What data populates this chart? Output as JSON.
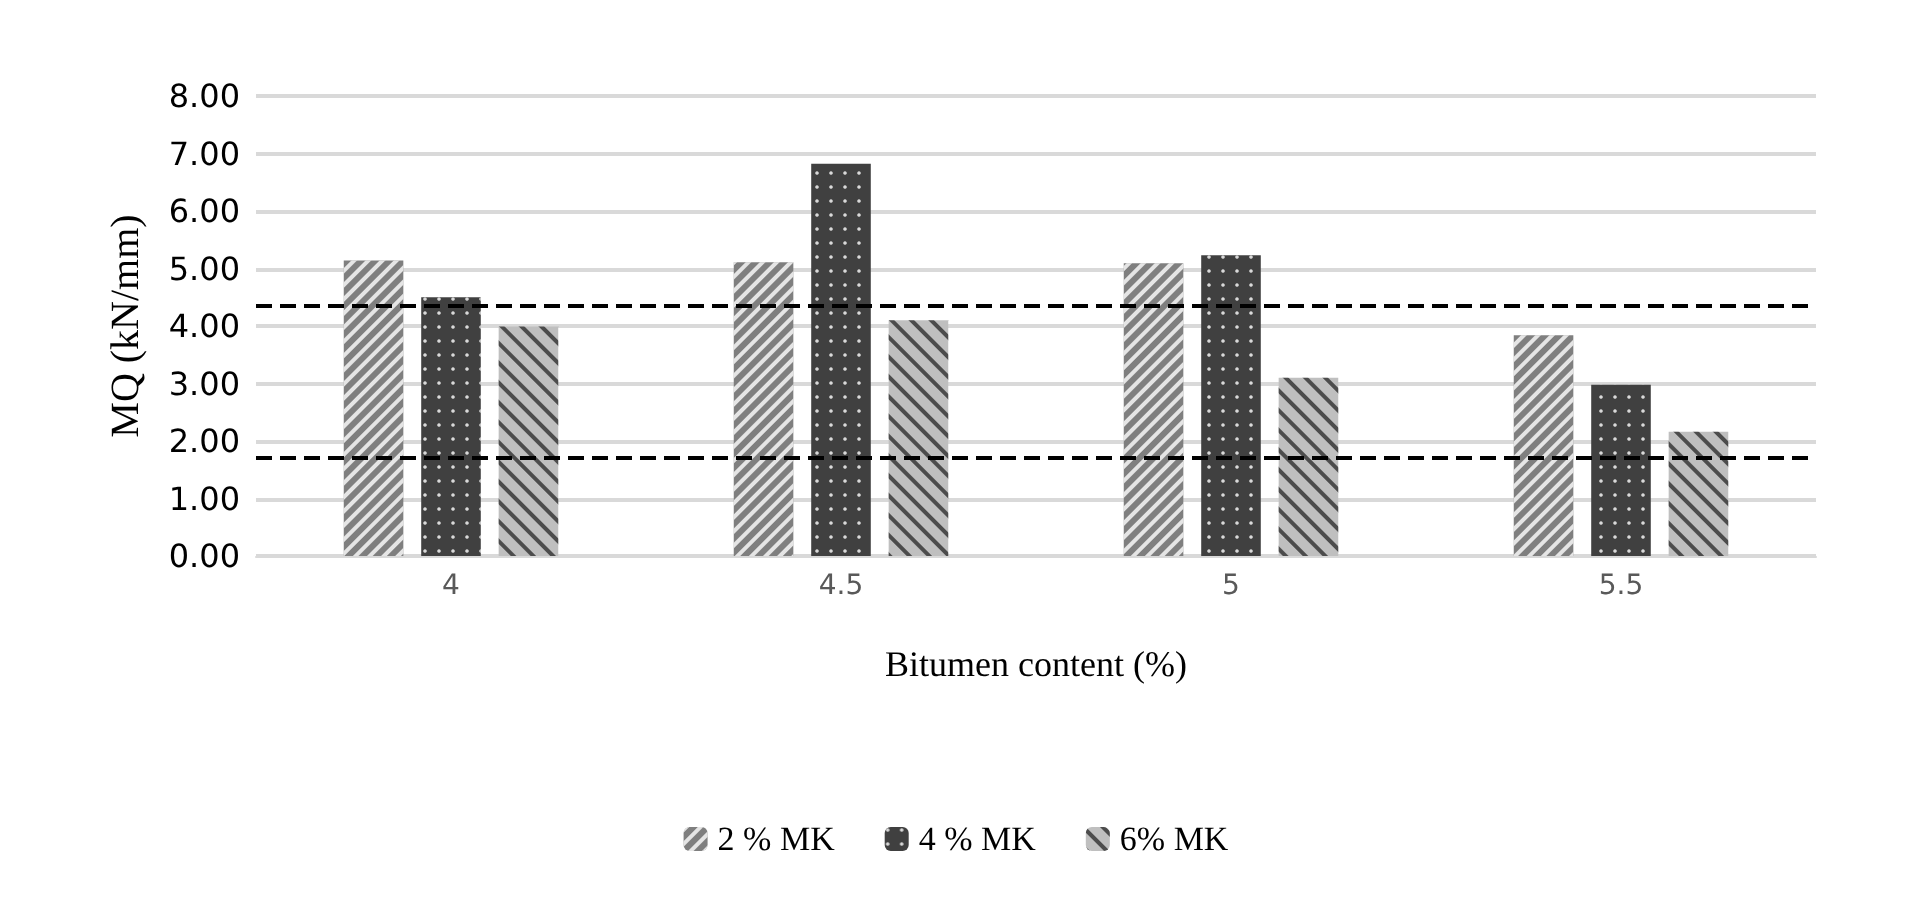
{
  "chart_data": {
    "type": "bar",
    "xlabel": "Bitumen content (%)",
    "ylabel": "MQ (kN/mm)",
    "categories": [
      "4",
      "4.5",
      "5",
      "5.5"
    ],
    "series": [
      {
        "name": "2 % MK",
        "color": "#7f7f7f",
        "values": [
          5.14,
          5.11,
          5.09,
          3.84
        ]
      },
      {
        "name": "4 % MK",
        "color": "#404040",
        "values": [
          4.5,
          6.82,
          5.23,
          2.98
        ]
      },
      {
        "name": "6% MK",
        "color": "#bfbfbf",
        "values": [
          3.99,
          4.1,
          3.1,
          2.16
        ]
      }
    ],
    "ylim": [
      0,
      8
    ],
    "yticks": [
      {
        "value": 0,
        "label": "0.00"
      },
      {
        "value": 1,
        "label": "1.00"
      },
      {
        "value": 2,
        "label": "2.00"
      },
      {
        "value": 3,
        "label": "3.00"
      },
      {
        "value": 4,
        "label": "4.00"
      },
      {
        "value": 5,
        "label": "5.00"
      },
      {
        "value": 6,
        "label": "6.00"
      },
      {
        "value": 7,
        "label": "7.00"
      },
      {
        "value": 8,
        "label": "8.00"
      }
    ],
    "ref_lines": [
      {
        "axis": "y",
        "value": 4.35,
        "color": "#000000",
        "line_style": "dashed"
      },
      {
        "axis": "y",
        "value": 1.7,
        "color": "#000000",
        "line_style": "dashed"
      }
    ],
    "grid": "y",
    "legend": "bottom"
  }
}
